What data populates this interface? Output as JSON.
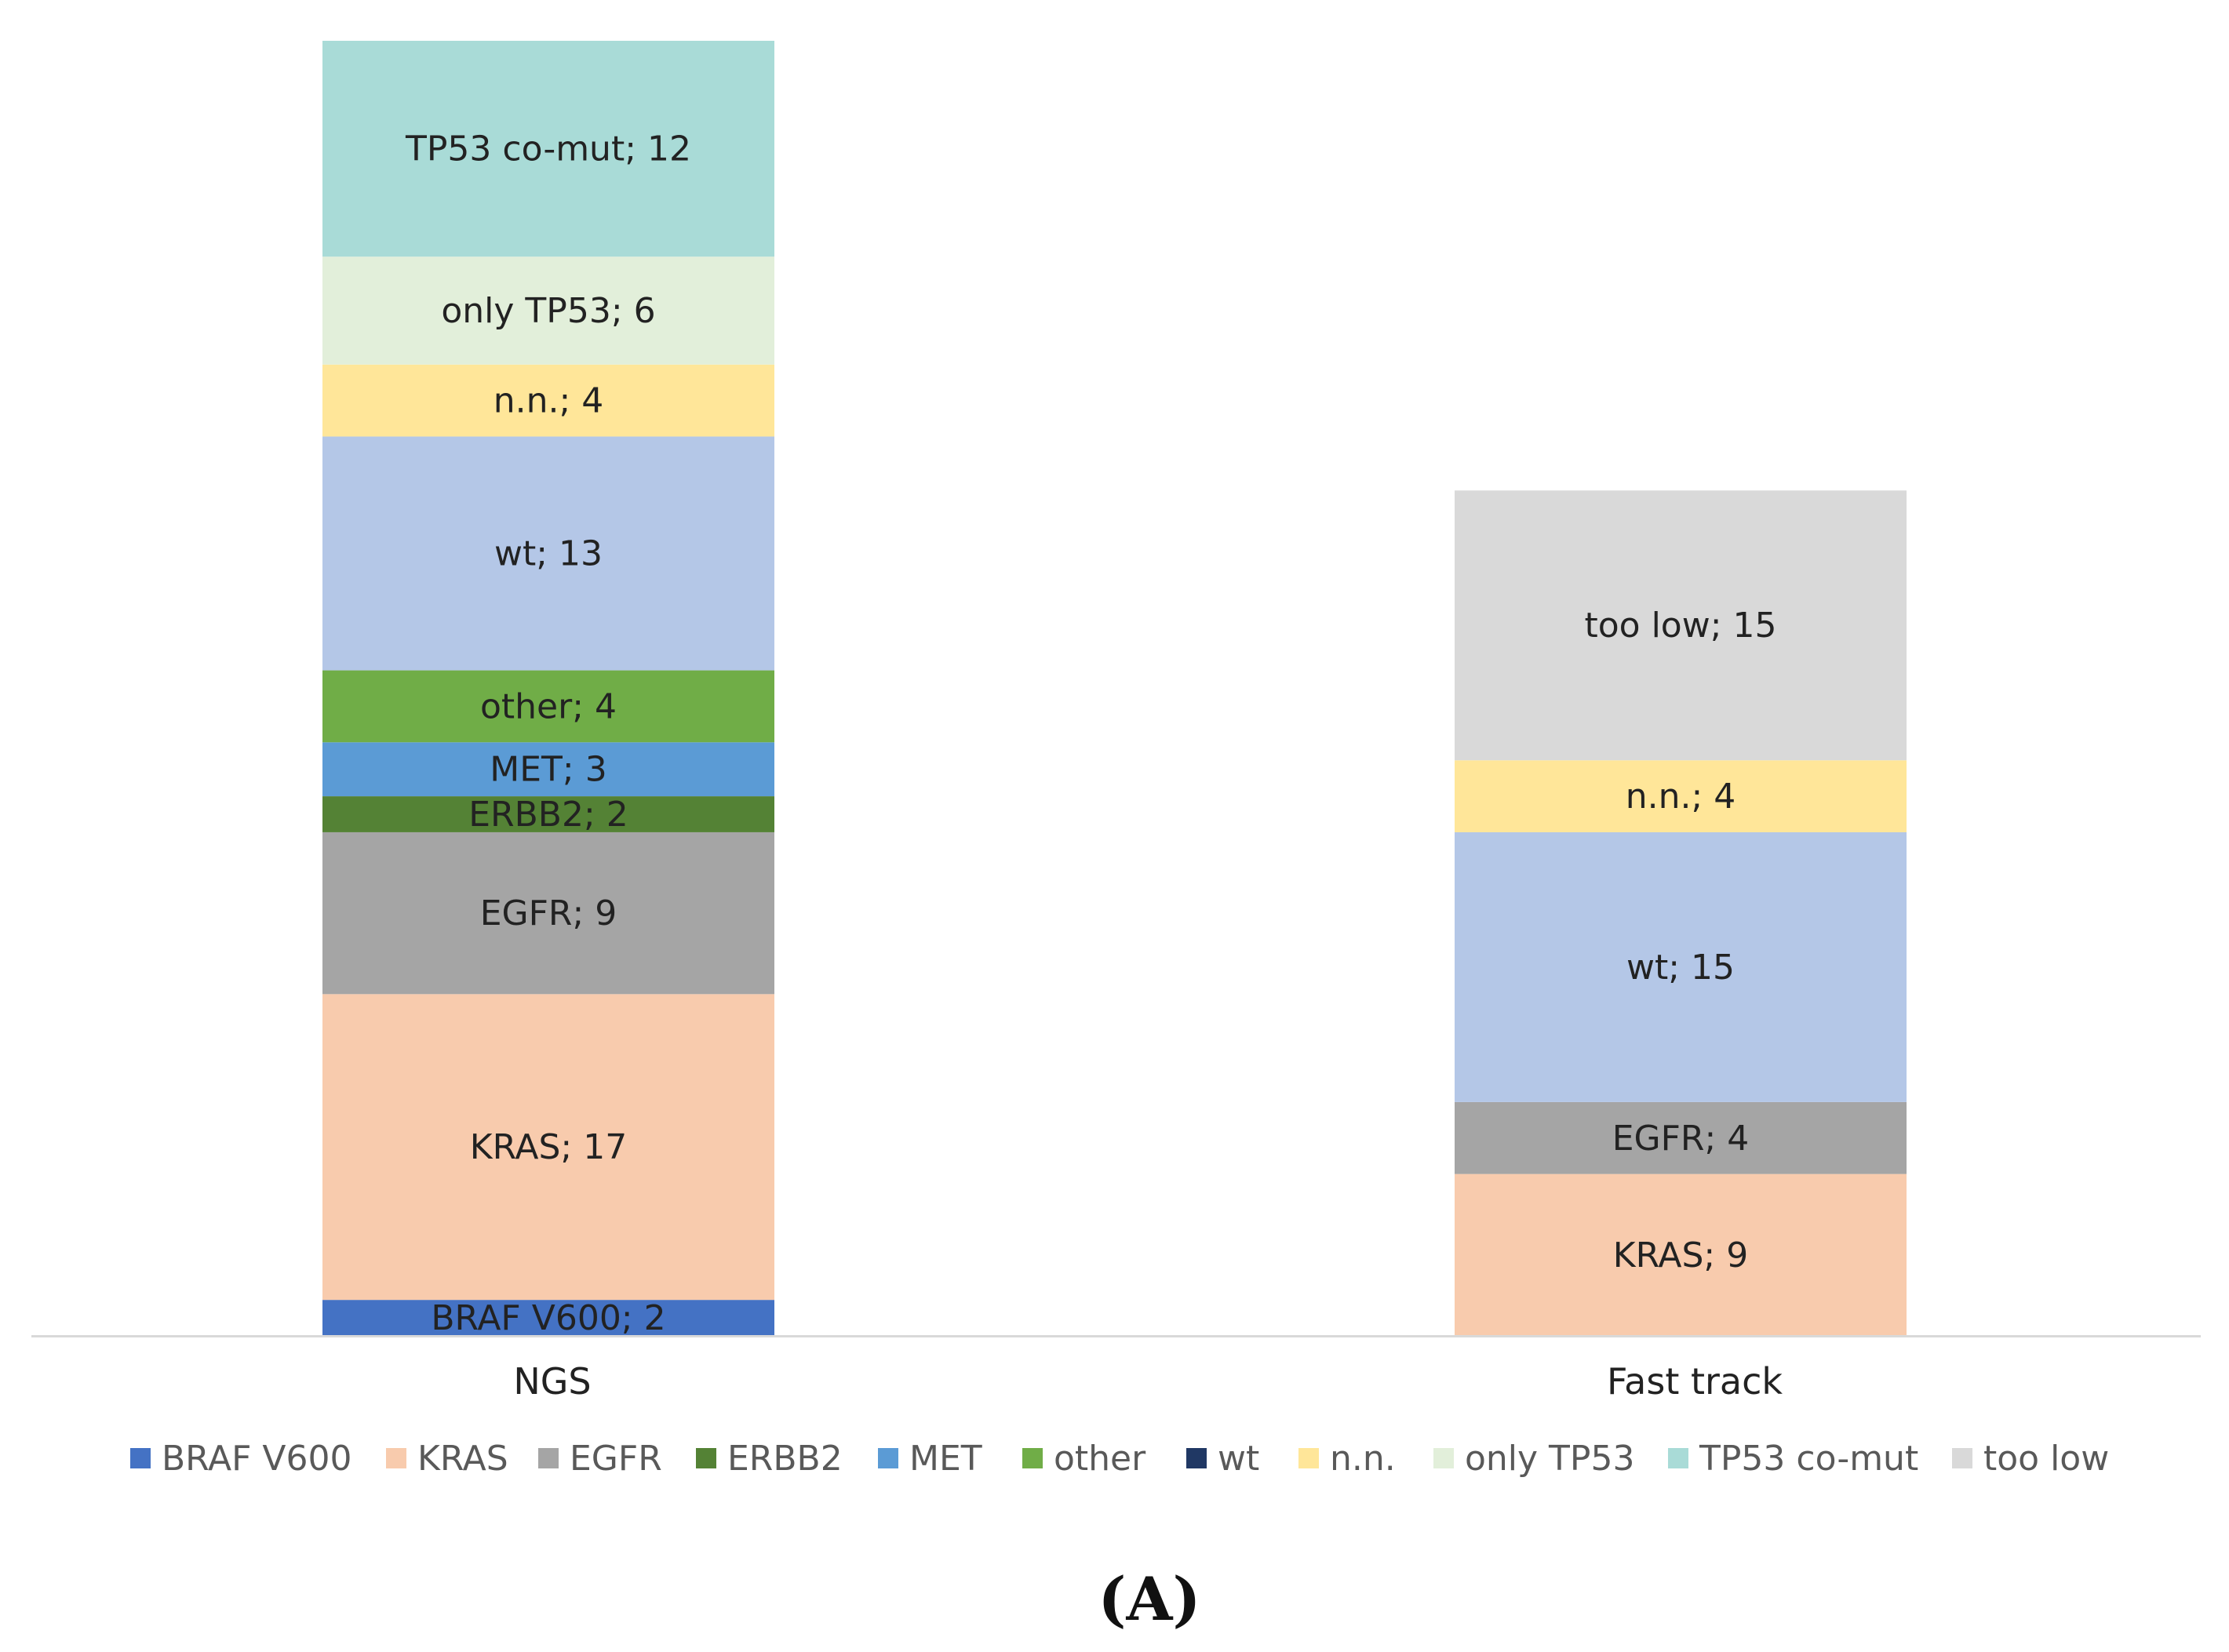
{
  "chart_data": {
    "type": "bar",
    "stacked": true,
    "categories": [
      "NGS",
      "Fast track"
    ],
    "series": [
      {
        "name": "BRAF V600",
        "color": "#4472c4",
        "values": [
          2,
          0
        ]
      },
      {
        "name": "KRAS",
        "color": "#f8cbad",
        "values": [
          17,
          9
        ]
      },
      {
        "name": "EGFR",
        "color": "#a5a5a5",
        "values": [
          9,
          4
        ]
      },
      {
        "name": "ERBB2",
        "color": "#548235",
        "values": [
          2,
          0
        ]
      },
      {
        "name": "MET",
        "color": "#5b9bd5",
        "values": [
          3,
          0
        ]
      },
      {
        "name": "other",
        "color": "#70ad47",
        "values": [
          4,
          0
        ]
      },
      {
        "name": "wt",
        "color": "#b4c7e7",
        "legend_color": "#203864",
        "values": [
          13,
          15
        ]
      },
      {
        "name": "n.n.",
        "color": "#ffe699",
        "values": [
          4,
          4
        ]
      },
      {
        "name": "only TP53",
        "color": "#e2efda",
        "values": [
          6,
          0
        ]
      },
      {
        "name": "TP53 co-mut",
        "color": "#a9dbd7",
        "values": [
          12,
          0
        ]
      },
      {
        "name": "too low",
        "color": "#d9d9d9",
        "values": [
          0,
          15
        ]
      }
    ],
    "segment_labels": [
      [
        "BRAF V600; 2",
        "KRAS; 17",
        "EGFR; 9",
        "ERBB2; 2",
        "MET; 3",
        "other; 4",
        "wt; 13",
        "n.n.; 4",
        "only TP53; 6",
        "TP53 co-mut; 12",
        ""
      ],
      [
        "",
        "KRAS; 9",
        "EGFR; 4",
        "",
        "",
        "",
        "wt; 15",
        "n.n.; 4",
        "",
        "",
        "too low; 15"
      ]
    ],
    "ylim": [
      0,
      72
    ],
    "axis_line_color": "#d9d9d9",
    "grid": false,
    "legend_position": "bottom",
    "panel_label": "(A)"
  }
}
